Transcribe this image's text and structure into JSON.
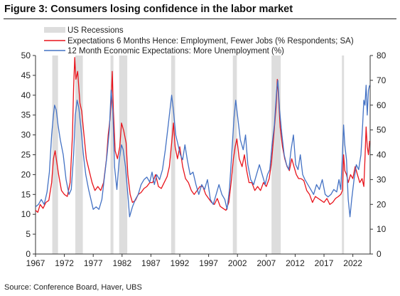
{
  "figure": {
    "title": "Figure 3: Consumers losing confidence in the labor market",
    "source": "Source: Conference Board, Haver, UBS"
  },
  "chart_data": {
    "type": "line",
    "title": "Figure 3: Consumers losing confidence in the labor market",
    "xlim": [
      1967,
      2025
    ],
    "x_ticks": [
      "1967",
      "1972",
      "1977",
      "1982",
      "1987",
      "1992",
      "1997",
      "2002",
      "2007",
      "2012",
      "2017",
      "2022"
    ],
    "y_left": {
      "min": 0,
      "max": 50,
      "ticks": [
        "0",
        "5",
        "10",
        "15",
        "20",
        "25",
        "30",
        "35",
        "40",
        "45",
        "50"
      ]
    },
    "y_right": {
      "min": 0,
      "max": 80,
      "ticks": [
        "0",
        "10",
        "20",
        "30",
        "40",
        "50",
        "60",
        "70",
        "80"
      ]
    },
    "grid": false,
    "legend_position": "top-left",
    "recessions": {
      "name": "US Recessions",
      "color": "#dddddd",
      "periods": [
        [
          1969.9,
          1970.9
        ],
        [
          1973.9,
          1975.2
        ],
        [
          1980.0,
          1980.5
        ],
        [
          1981.5,
          1982.9
        ],
        [
          1990.5,
          1991.2
        ],
        [
          2001.2,
          2001.9
        ],
        [
          2007.9,
          2009.5
        ],
        [
          2020.1,
          2020.4
        ]
      ]
    },
    "series": [
      {
        "name": "Expectations 6 Months Hence: Employment, Fewer Jobs (% Respondents; SA)",
        "axis": "left",
        "color": "#e8141c",
        "points": [
          [
            1967.0,
            11.0
          ],
          [
            1967.4,
            10.5
          ],
          [
            1967.8,
            12.5
          ],
          [
            1968.3,
            11.5
          ],
          [
            1968.8,
            13.0
          ],
          [
            1969.3,
            13.5
          ],
          [
            1969.8,
            18.0
          ],
          [
            1970.1,
            24.0
          ],
          [
            1970.4,
            26.0
          ],
          [
            1970.7,
            23.0
          ],
          [
            1971.0,
            20.0
          ],
          [
            1971.5,
            16.0
          ],
          [
            1972.0,
            15.0
          ],
          [
            1972.5,
            14.5
          ],
          [
            1973.0,
            18.0
          ],
          [
            1973.4,
            30.0
          ],
          [
            1973.6,
            42.0
          ],
          [
            1973.8,
            49.5
          ],
          [
            1974.0,
            44.0
          ],
          [
            1974.3,
            46.0
          ],
          [
            1974.7,
            38.0
          ],
          [
            1975.0,
            36.0
          ],
          [
            1975.4,
            30.0
          ],
          [
            1975.8,
            24.0
          ],
          [
            1976.3,
            21.0
          ],
          [
            1976.8,
            18.0
          ],
          [
            1977.3,
            16.0
          ],
          [
            1977.8,
            17.0
          ],
          [
            1978.3,
            16.0
          ],
          [
            1978.8,
            18.0
          ],
          [
            1979.3,
            24.0
          ],
          [
            1979.6,
            30.0
          ],
          [
            1979.9,
            34.0
          ],
          [
            1980.1,
            38.0
          ],
          [
            1980.3,
            46.0
          ],
          [
            1980.5,
            36.0
          ],
          [
            1980.8,
            26.0
          ],
          [
            1981.2,
            24.0
          ],
          [
            1981.6,
            27.0
          ],
          [
            1981.9,
            33.0
          ],
          [
            1982.3,
            31.0
          ],
          [
            1982.7,
            28.0
          ],
          [
            1983.0,
            20.0
          ],
          [
            1983.4,
            15.0
          ],
          [
            1983.8,
            13.0
          ],
          [
            1984.3,
            13.5
          ],
          [
            1984.8,
            15.0
          ],
          [
            1985.3,
            15.5
          ],
          [
            1985.8,
            16.5
          ],
          [
            1986.3,
            17.0
          ],
          [
            1986.8,
            18.0
          ],
          [
            1987.3,
            18.0
          ],
          [
            1987.8,
            20.0
          ],
          [
            1988.3,
            17.0
          ],
          [
            1988.8,
            16.5
          ],
          [
            1989.3,
            18.0
          ],
          [
            1989.8,
            19.5
          ],
          [
            1990.2,
            22.0
          ],
          [
            1990.6,
            28.0
          ],
          [
            1990.9,
            33.0
          ],
          [
            1991.2,
            27.0
          ],
          [
            1991.6,
            24.0
          ],
          [
            1992.0,
            27.0
          ],
          [
            1992.5,
            22.0
          ],
          [
            1993.0,
            19.0
          ],
          [
            1993.5,
            18.0
          ],
          [
            1994.0,
            16.0
          ],
          [
            1994.5,
            15.0
          ],
          [
            1995.0,
            16.0
          ],
          [
            1995.5,
            17.0
          ],
          [
            1996.0,
            17.0
          ],
          [
            1996.5,
            15.0
          ],
          [
            1997.0,
            14.0
          ],
          [
            1997.5,
            13.0
          ],
          [
            1998.0,
            12.5
          ],
          [
            1998.5,
            14.0
          ],
          [
            1999.0,
            12.0
          ],
          [
            1999.5,
            11.5
          ],
          [
            2000.0,
            11.0
          ],
          [
            2000.5,
            13.0
          ],
          [
            2000.9,
            18.0
          ],
          [
            2001.3,
            24.0
          ],
          [
            2001.6,
            27.0
          ],
          [
            2001.9,
            29.0
          ],
          [
            2002.3,
            24.0
          ],
          [
            2002.8,
            22.0
          ],
          [
            2003.2,
            25.0
          ],
          [
            2003.6,
            21.0
          ],
          [
            2004.0,
            18.0
          ],
          [
            2004.5,
            18.0
          ],
          [
            2005.0,
            16.0
          ],
          [
            2005.5,
            17.0
          ],
          [
            2006.0,
            16.0
          ],
          [
            2006.5,
            18.0
          ],
          [
            2007.0,
            17.0
          ],
          [
            2007.5,
            19.0
          ],
          [
            2007.9,
            23.0
          ],
          [
            2008.3,
            30.0
          ],
          [
            2008.7,
            37.0
          ],
          [
            2008.9,
            44.0
          ],
          [
            2009.1,
            40.0
          ],
          [
            2009.4,
            32.0
          ],
          [
            2009.8,
            27.0
          ],
          [
            2010.2,
            24.0
          ],
          [
            2010.6,
            22.0
          ],
          [
            2011.0,
            21.0
          ],
          [
            2011.4,
            24.0
          ],
          [
            2011.8,
            22.0
          ],
          [
            2012.2,
            20.0
          ],
          [
            2012.6,
            19.0
          ],
          [
            2013.0,
            19.0
          ],
          [
            2013.5,
            18.5
          ],
          [
            2014.0,
            16.0
          ],
          [
            2014.5,
            15.0
          ],
          [
            2015.0,
            13.0
          ],
          [
            2015.5,
            14.5
          ],
          [
            2016.0,
            14.0
          ],
          [
            2016.5,
            13.5
          ],
          [
            2017.0,
            13.0
          ],
          [
            2017.5,
            14.0
          ],
          [
            2018.0,
            12.5
          ],
          [
            2018.5,
            13.0
          ],
          [
            2019.0,
            14.0
          ],
          [
            2019.5,
            14.5
          ],
          [
            2019.9,
            15.0
          ],
          [
            2020.2,
            16.0
          ],
          [
            2020.4,
            25.0
          ],
          [
            2020.6,
            21.0
          ],
          [
            2020.9,
            20.0
          ],
          [
            2021.2,
            18.0
          ],
          [
            2021.6,
            20.0
          ],
          [
            2022.0,
            19.0
          ],
          [
            2022.4,
            22.0
          ],
          [
            2022.8,
            20.0
          ],
          [
            2023.2,
            18.0
          ],
          [
            2023.6,
            19.0
          ],
          [
            2023.9,
            17.0
          ],
          [
            2024.1,
            24.0
          ],
          [
            2024.3,
            32.0
          ],
          [
            2024.5,
            27.0
          ],
          [
            2024.7,
            25.0
          ],
          [
            2024.9,
            28.5
          ]
        ]
      },
      {
        "name": "12 Month Economic Expectations: More Unemployment (%)",
        "axis": "right",
        "color": "#4472c4",
        "points": [
          [
            1967.0,
            19.0
          ],
          [
            1967.5,
            20.0
          ],
          [
            1968.0,
            22.0
          ],
          [
            1968.5,
            20.0
          ],
          [
            1969.0,
            25.0
          ],
          [
            1969.4,
            33.0
          ],
          [
            1969.8,
            48.0
          ],
          [
            1970.1,
            56.0
          ],
          [
            1970.3,
            60.0
          ],
          [
            1970.6,
            58.0
          ],
          [
            1970.9,
            52.0
          ],
          [
            1971.3,
            46.0
          ],
          [
            1971.8,
            40.0
          ],
          [
            1972.3,
            30.0
          ],
          [
            1972.8,
            24.0
          ],
          [
            1973.2,
            26.0
          ],
          [
            1973.6,
            40.0
          ],
          [
            1973.9,
            56.0
          ],
          [
            1974.2,
            62.0
          ],
          [
            1974.5,
            59.0
          ],
          [
            1974.9,
            50.0
          ],
          [
            1975.3,
            40.0
          ],
          [
            1975.7,
            32.0
          ],
          [
            1976.2,
            26.0
          ],
          [
            1976.6,
            22.0
          ],
          [
            1977.0,
            18.0
          ],
          [
            1977.5,
            19.0
          ],
          [
            1978.0,
            18.0
          ],
          [
            1978.5,
            22.0
          ],
          [
            1979.0,
            32.0
          ],
          [
            1979.4,
            40.0
          ],
          [
            1979.8,
            50.0
          ],
          [
            1980.1,
            66.0
          ],
          [
            1980.4,
            58.0
          ],
          [
            1980.7,
            35.0
          ],
          [
            1981.1,
            26.0
          ],
          [
            1981.5,
            38.0
          ],
          [
            1981.9,
            44.0
          ],
          [
            1982.2,
            42.0
          ],
          [
            1982.6,
            35.0
          ],
          [
            1983.0,
            24.0
          ],
          [
            1983.3,
            15.0
          ],
          [
            1983.8,
            19.0
          ],
          [
            1984.3,
            22.0
          ],
          [
            1984.8,
            24.0
          ],
          [
            1985.3,
            28.0
          ],
          [
            1985.8,
            30.0
          ],
          [
            1986.3,
            31.0
          ],
          [
            1986.8,
            29.0
          ],
          [
            1987.2,
            33.0
          ],
          [
            1987.6,
            28.0
          ],
          [
            1988.0,
            32.0
          ],
          [
            1988.5,
            30.0
          ],
          [
            1989.0,
            34.0
          ],
          [
            1989.5,
            42.0
          ],
          [
            1990.0,
            52.0
          ],
          [
            1990.3,
            58.0
          ],
          [
            1990.6,
            64.0
          ],
          [
            1990.9,
            58.0
          ],
          [
            1991.3,
            48.0
          ],
          [
            1991.7,
            44.0
          ],
          [
            1992.1,
            40.0
          ],
          [
            1992.5,
            38.0
          ],
          [
            1992.9,
            44.0
          ],
          [
            1993.3,
            38.0
          ],
          [
            1993.8,
            32.0
          ],
          [
            1994.3,
            33.0
          ],
          [
            1994.8,
            28.0
          ],
          [
            1995.3,
            24.0
          ],
          [
            1995.8,
            28.0
          ],
          [
            1996.3,
            26.0
          ],
          [
            1996.8,
            30.0
          ],
          [
            1997.3,
            22.0
          ],
          [
            1997.8,
            20.0
          ],
          [
            1998.3,
            24.0
          ],
          [
            1998.8,
            28.0
          ],
          [
            1999.3,
            24.0
          ],
          [
            1999.8,
            22.0
          ],
          [
            2000.2,
            18.0
          ],
          [
            2000.6,
            26.0
          ],
          [
            2001.0,
            40.0
          ],
          [
            2001.4,
            55.0
          ],
          [
            2001.7,
            62.0
          ],
          [
            2002.0,
            56.0
          ],
          [
            2002.5,
            46.0
          ],
          [
            2003.0,
            42.0
          ],
          [
            2003.4,
            48.0
          ],
          [
            2003.8,
            36.0
          ],
          [
            2004.3,
            30.0
          ],
          [
            2004.8,
            28.0
          ],
          [
            2005.3,
            32.0
          ],
          [
            2005.8,
            36.0
          ],
          [
            2006.3,
            32.0
          ],
          [
            2006.8,
            28.0
          ],
          [
            2007.2,
            32.0
          ],
          [
            2007.6,
            34.0
          ],
          [
            2008.0,
            44.0
          ],
          [
            2008.4,
            52.0
          ],
          [
            2008.8,
            66.0
          ],
          [
            2009.0,
            70.0
          ],
          [
            2009.3,
            58.0
          ],
          [
            2009.7,
            48.0
          ],
          [
            2010.1,
            40.0
          ],
          [
            2010.5,
            36.0
          ],
          [
            2010.9,
            34.0
          ],
          [
            2011.3,
            42.0
          ],
          [
            2011.7,
            48.0
          ],
          [
            2012.1,
            36.0
          ],
          [
            2012.5,
            34.0
          ],
          [
            2012.9,
            40.0
          ],
          [
            2013.3,
            32.0
          ],
          [
            2013.7,
            30.0
          ],
          [
            2014.2,
            28.0
          ],
          [
            2014.7,
            26.0
          ],
          [
            2015.2,
            24.0
          ],
          [
            2015.7,
            28.0
          ],
          [
            2016.2,
            26.0
          ],
          [
            2016.7,
            30.0
          ],
          [
            2017.2,
            24.0
          ],
          [
            2017.7,
            23.0
          ],
          [
            2018.2,
            24.0
          ],
          [
            2018.7,
            26.0
          ],
          [
            2019.2,
            25.0
          ],
          [
            2019.6,
            30.0
          ],
          [
            2019.9,
            26.0
          ],
          [
            2020.2,
            40.0
          ],
          [
            2020.4,
            52.0
          ],
          [
            2020.6,
            44.0
          ],
          [
            2020.9,
            38.0
          ],
          [
            2021.2,
            22.0
          ],
          [
            2021.5,
            15.0
          ],
          [
            2021.8,
            22.0
          ],
          [
            2022.2,
            30.0
          ],
          [
            2022.6,
            36.0
          ],
          [
            2023.0,
            34.0
          ],
          [
            2023.4,
            40.0
          ],
          [
            2023.7,
            52.0
          ],
          [
            2023.9,
            62.0
          ],
          [
            2024.1,
            60.0
          ],
          [
            2024.3,
            68.0
          ],
          [
            2024.5,
            56.0
          ],
          [
            2024.7,
            66.0
          ],
          [
            2024.9,
            68.0
          ]
        ]
      }
    ]
  }
}
